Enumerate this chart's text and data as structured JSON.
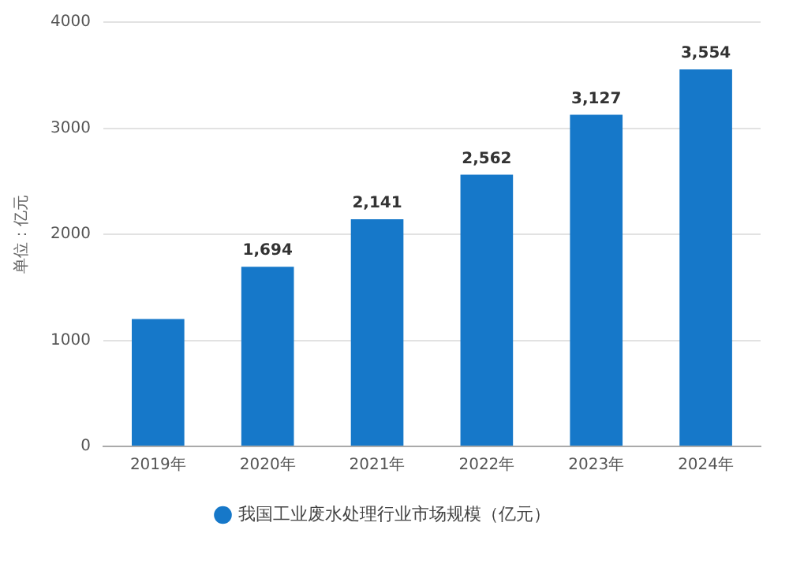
{
  "chart_data": {
    "type": "bar",
    "ylabel": "单位：亿元",
    "categories": [
      "2019年",
      "2020年",
      "2021年",
      "2022年",
      "2023年",
      "2024年"
    ],
    "series": [
      {
        "name": "我国工业废水处理行业市场规模（亿元）",
        "color": "#1678c9",
        "values": [
          1200,
          1694,
          2141,
          2562,
          3127,
          3554
        ],
        "value_labels": [
          null,
          "1,694",
          "2,141",
          "2,562",
          "3,127",
          "3,554"
        ]
      }
    ],
    "ylim": [
      0,
      4000
    ],
    "yticks": [
      0,
      1000,
      2000,
      3000,
      4000
    ],
    "grid": "y",
    "legend": "bottom"
  }
}
